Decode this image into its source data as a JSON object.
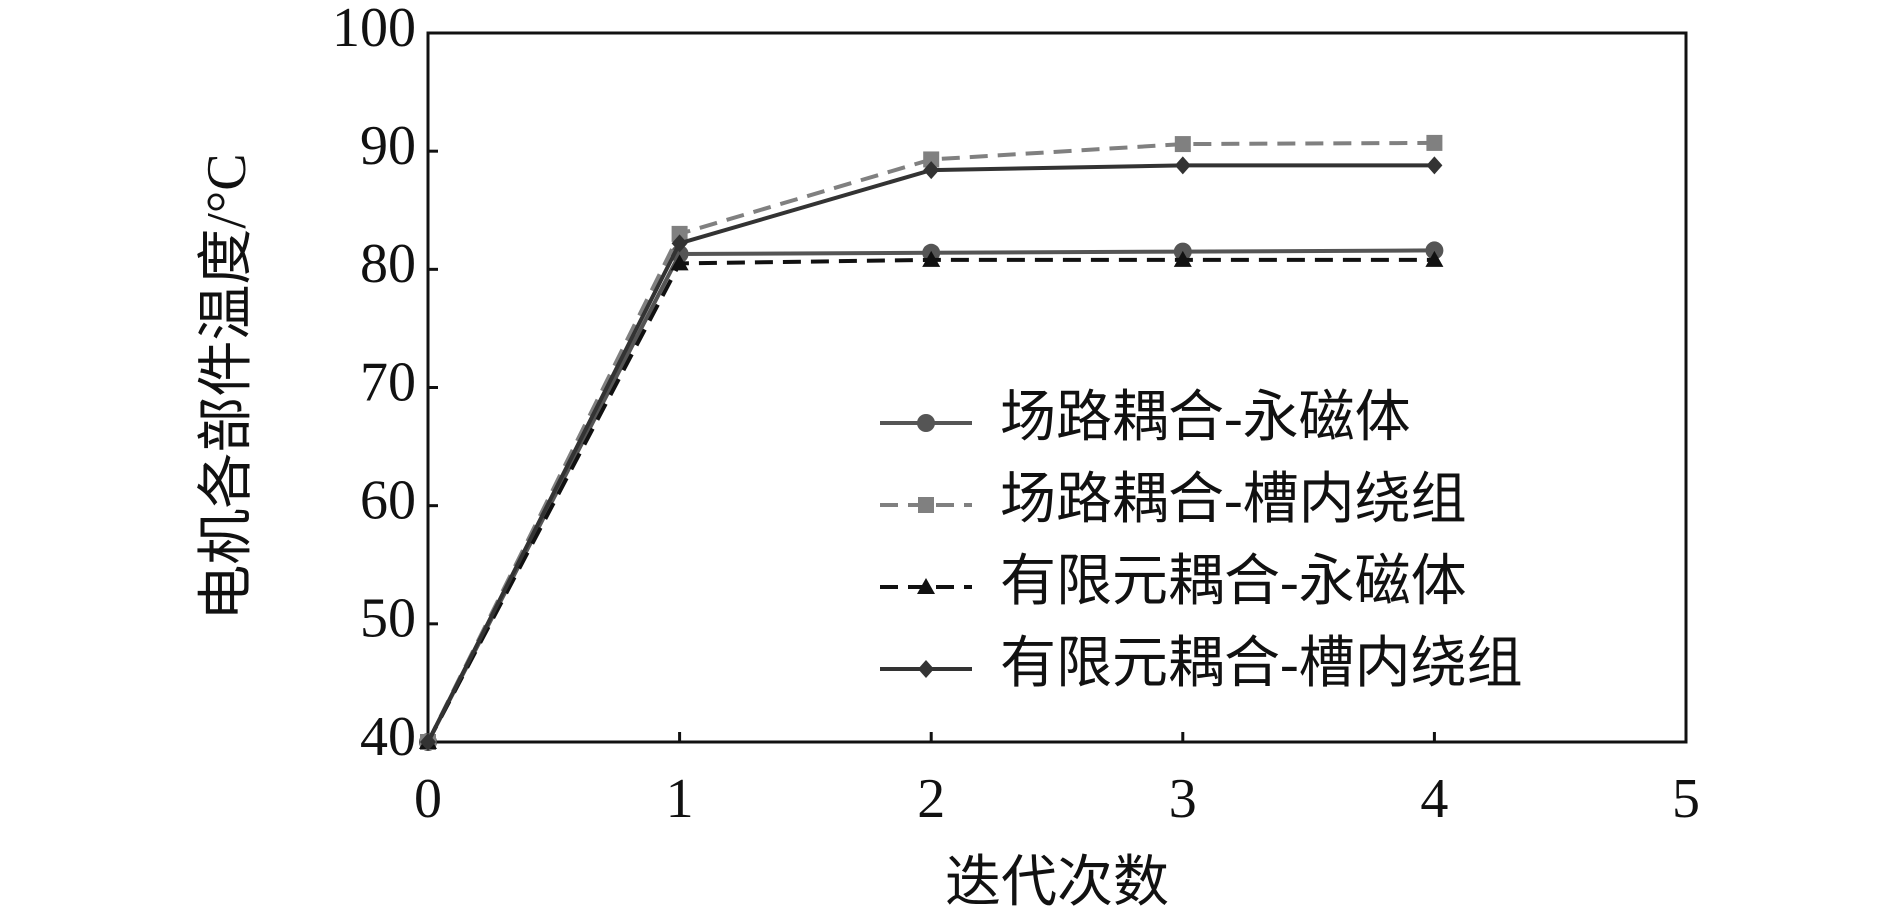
{
  "chart_data": {
    "type": "line",
    "x_label": "迭代次数",
    "y_label": "电机各部件温度/°C",
    "x": [
      0,
      1,
      2,
      3,
      4
    ],
    "series": [
      {
        "name": "场路耦合-永磁体",
        "color": "#555555",
        "dashed": false,
        "marker": "circle",
        "values": [
          40,
          81.3,
          81.4,
          81.5,
          81.6
        ]
      },
      {
        "name": "场路耦合-槽内绕组",
        "color": "#808080",
        "dashed": true,
        "marker": "square",
        "values": [
          40,
          83,
          89.3,
          90.6,
          90.7
        ]
      },
      {
        "name": "有限元耦合-永磁体",
        "color": "#111111",
        "dashed": true,
        "marker": "triangle",
        "values": [
          40,
          80.5,
          80.8,
          80.8,
          80.8
        ]
      },
      {
        "name": "有限元耦合-槽内绕组",
        "color": "#333333",
        "dashed": false,
        "marker": "diamond",
        "values": [
          40,
          82.2,
          88.4,
          88.8,
          88.8
        ]
      }
    ],
    "xlim": [
      0,
      5
    ],
    "xticks": [
      0,
      1,
      2,
      3,
      4,
      5
    ],
    "ylim": [
      40,
      100
    ],
    "yticks": [
      40,
      50,
      60,
      70,
      80,
      90,
      100
    ],
    "grid": false
  }
}
